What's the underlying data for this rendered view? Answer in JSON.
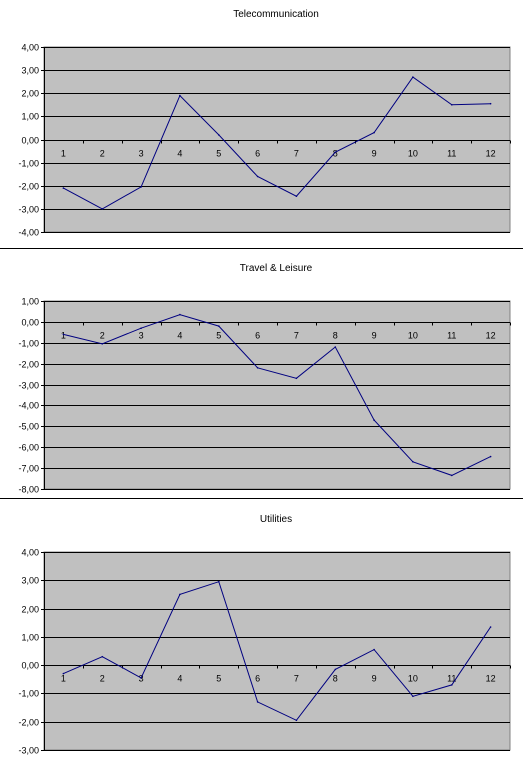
{
  "colors": {
    "plot_background": "#c0c0c0",
    "gridline": "#000000",
    "series_line": "#000080",
    "separator": "#000000",
    "text": "#000000"
  },
  "chart_data": [
    {
      "type": "line",
      "title": "Telecommunication",
      "categories": [
        "1",
        "2",
        "3",
        "4",
        "5",
        "6",
        "7",
        "8",
        "9",
        "10",
        "11",
        "12"
      ],
      "values": [
        -2.1,
        -3.0,
        -2.05,
        1.9,
        0.2,
        -1.6,
        -2.45,
        -0.55,
        0.3,
        2.7,
        1.5,
        1.55
      ],
      "ylim": [
        -4,
        4
      ],
      "yticks": [
        4,
        3,
        2,
        1,
        0,
        -1,
        -2,
        -3,
        -4
      ],
      "ytick_labels": [
        "4,00",
        "3,00",
        "2,00",
        "1,00",
        "0,00",
        "-1,00",
        "-2,00",
        "-3,00",
        "-4,00"
      ],
      "grid": true
    },
    {
      "type": "line",
      "title": "Travel & Leisure",
      "categories": [
        "1",
        "2",
        "3",
        "4",
        "5",
        "6",
        "7",
        "8",
        "9",
        "10",
        "11",
        "12"
      ],
      "values": [
        -0.6,
        -1.05,
        -0.3,
        0.35,
        -0.2,
        -2.2,
        -2.7,
        -1.2,
        -4.7,
        -6.7,
        -7.35,
        -6.45
      ],
      "ylim": [
        -8,
        1
      ],
      "yticks": [
        1,
        0,
        -1,
        -2,
        -3,
        -4,
        -5,
        -6,
        -7,
        -8
      ],
      "ytick_labels": [
        "1,00",
        "0,00",
        "-1,00",
        "-2,00",
        "-3,00",
        "-4,00",
        "-5,00",
        "-6,00",
        "-7,00",
        "-8,00"
      ],
      "grid": true
    },
    {
      "type": "line",
      "title": "Utilities",
      "categories": [
        "1",
        "2",
        "3",
        "4",
        "5",
        "6",
        "7",
        "8",
        "9",
        "10",
        "11",
        "12"
      ],
      "values": [
        -0.3,
        0.3,
        -0.45,
        2.5,
        2.95,
        -1.3,
        -1.95,
        -0.15,
        0.55,
        -1.1,
        -0.7,
        1.35
      ],
      "ylim": [
        -3,
        4
      ],
      "yticks": [
        4,
        3,
        2,
        1,
        0,
        -1,
        -2,
        -3
      ],
      "ytick_labels": [
        "4,00",
        "3,00",
        "2,00",
        "1,00",
        "0,00",
        "-1,00",
        "-2,00",
        "-3,00"
      ],
      "grid": true
    }
  ]
}
